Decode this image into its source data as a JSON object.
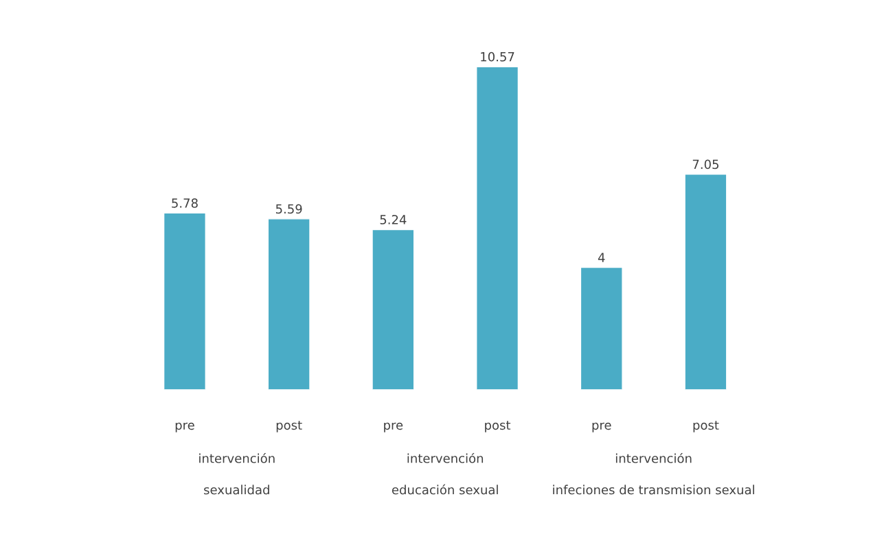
{
  "chart_data": {
    "type": "bar",
    "categories": [
      "pre",
      "post",
      "pre",
      "post",
      "pre",
      "post"
    ],
    "values": [
      5.78,
      5.59,
      5.24,
      10.57,
      4,
      7.05
    ],
    "color": "#4aacc6",
    "data_labels": true,
    "grid": false,
    "legend": false,
    "annotations": [
      "intervención",
      "sexualidad",
      "intervención",
      "educación sexual",
      "intervención",
      "infeciones de transmision sexual"
    ]
  }
}
